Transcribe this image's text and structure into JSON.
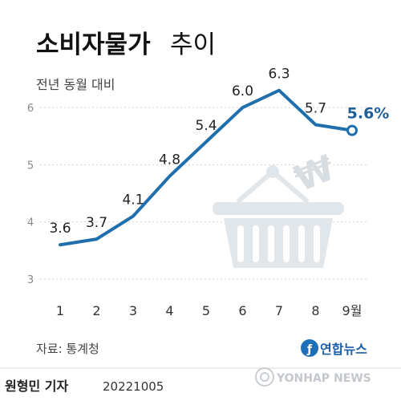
{
  "header": {
    "title": "소비자물가",
    "title_suffix": "추이",
    "subtitle": "전년 동월 대비"
  },
  "chart_data": {
    "type": "line",
    "title": "소비자물가 추이",
    "subtitle": "전년 동월 대비",
    "categories": [
      "1",
      "2",
      "3",
      "4",
      "5",
      "6",
      "7",
      "8",
      "9월"
    ],
    "series": [
      {
        "values": [
          3.6,
          3.7,
          4.1,
          4.8,
          5.4,
          6.0,
          6.3,
          5.7,
          5.6
        ]
      }
    ],
    "data_labels": [
      "3.6",
      "3.7",
      "4.1",
      "4.8",
      "5.4",
      "6.0",
      "6.3",
      "5.7",
      "5.6%"
    ],
    "y_ticks": [
      "6",
      "5",
      "4",
      "3"
    ],
    "ylim": [
      3,
      6.6
    ],
    "grid": true,
    "line_color": "#1f6fad",
    "marker_fill": "#ffffff"
  },
  "footer": {
    "source": "자료: 통계청",
    "reporter": "원형민 기자",
    "date": "20221005",
    "agency": "연합뉴스",
    "agency_en": "YONHAP NEWS"
  },
  "icons": [
    "shopping-basket-icon",
    "won-sign-icon",
    "yonhap-logo-icon"
  ],
  "colors": {
    "line": "#1f6fad",
    "basket": "#e1e6ea",
    "grid": "#d0d5da",
    "text": "#222222",
    "muted": "#666666"
  }
}
